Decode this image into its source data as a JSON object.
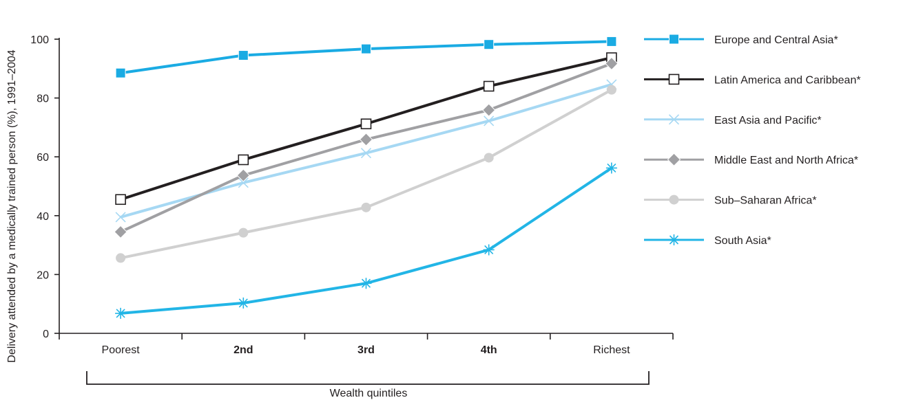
{
  "chart_data": {
    "type": "line",
    "title": "",
    "xlabel": "Wealth quintiles",
    "ylabel": "Delivery attended by a medically trained person (%), 1991–2004",
    "ylim": [
      0,
      100
    ],
    "yticks": [
      0,
      20,
      40,
      60,
      80,
      100
    ],
    "categories": [
      "Poorest",
      "2nd",
      "3rd",
      "4th",
      "Richest"
    ],
    "bold_categories": [
      "2nd",
      "3rd",
      "4th"
    ],
    "grid": false,
    "legend_position": "right",
    "series": [
      {
        "name": "Europe and Central Asia*",
        "values": [
          88.5,
          94.5,
          96.7,
          98.2,
          99.2
        ],
        "color": "#1aabe3",
        "marker": "square-filled"
      },
      {
        "name": "Latin America and Caribbean*",
        "values": [
          45.5,
          59.0,
          71.2,
          84.0,
          93.7
        ],
        "color": "#231f20",
        "marker": "square-open"
      },
      {
        "name": "East Asia and Pacific*",
        "values": [
          39.5,
          51.2,
          61.3,
          72.2,
          84.6
        ],
        "color": "#a6d8f3",
        "marker": "x"
      },
      {
        "name": "Middle East and North Africa*",
        "values": [
          34.5,
          53.7,
          65.9,
          75.9,
          91.7
        ],
        "color": "#a0a0a3",
        "marker": "diamond"
      },
      {
        "name": "Sub–Saharan Africa*",
        "values": [
          25.6,
          34.2,
          42.8,
          59.7,
          82.8
        ],
        "color": "#d0d0d0",
        "marker": "circle"
      },
      {
        "name": "South Asia*",
        "values": [
          6.8,
          10.3,
          17.0,
          28.4,
          56.2
        ],
        "color": "#22b5e6",
        "marker": "asterisk"
      }
    ]
  }
}
